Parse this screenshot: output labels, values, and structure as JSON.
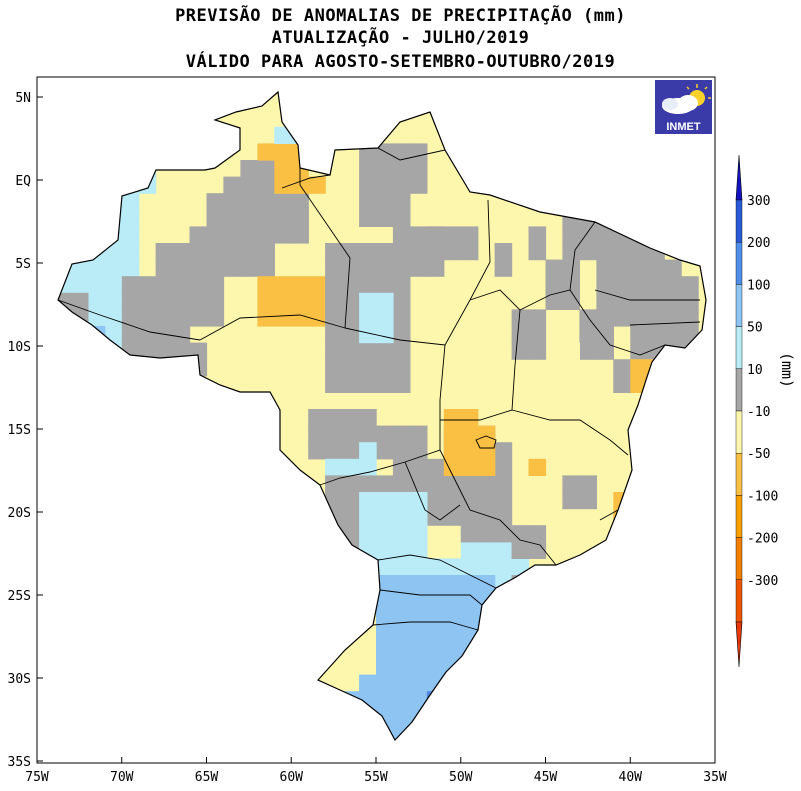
{
  "title": {
    "line1": "PREVISÃO DE ANOMALIAS DE PRECIPITAÇÃO (mm)",
    "line2": "ATUALIZAÇÃO - JULHO/2019",
    "line3": "VÁLIDO PARA AGOSTO-SETEMBRO-OUTUBRO/2019"
  },
  "logo": {
    "text": "INMET",
    "icon": "weather-cloud-sun-icon"
  },
  "axes": {
    "lat_labels": [
      "5N",
      "EQ",
      "5S",
      "10S",
      "15S",
      "20S",
      "25S",
      "30S",
      "35S"
    ],
    "lat_values": [
      5,
      0,
      -5,
      -10,
      -15,
      -20,
      -25,
      -30,
      -35
    ],
    "lon_labels": [
      "75W",
      "70W",
      "65W",
      "60W",
      "55W",
      "50W",
      "45W",
      "40W",
      "35W"
    ],
    "lon_values": [
      -75,
      -70,
      -65,
      -60,
      -55,
      -50,
      -45,
      -40,
      -35
    ]
  },
  "colorbar": {
    "unit": "(mm)",
    "labels": [
      "300",
      "200",
      "100",
      "50",
      "10",
      "-10",
      "-50",
      "-100",
      "-200",
      "-300"
    ],
    "colors": [
      "#2a59d8",
      "#4f8ee8",
      "#8ec4f2",
      "#b9ecf7",
      "#a6a6a6",
      "#fdf6ad",
      "#fac044",
      "#f79f00",
      "#f37d00",
      "#ef5500"
    ],
    "top_arrow_color": "#1313c4",
    "bottom_arrow_color": "#e8380d"
  },
  "palette": {
    "g": "#a6a6a6",
    "y": "#fdf6ad",
    "o": "#fac044",
    "c": "#b9ecf7",
    "b": "#8ec4f2",
    "m": "#4f8ee8"
  }
}
